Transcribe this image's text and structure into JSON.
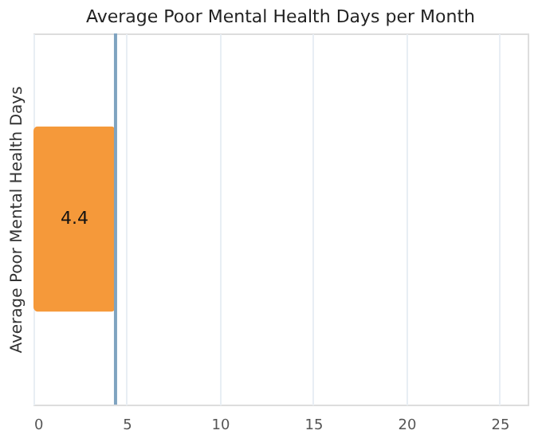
{
  "chart_data": {
    "type": "bar",
    "orientation": "horizontal",
    "title": "Average Poor Mental Health Days per Month",
    "ylabel": "Average Poor Mental Health Days",
    "categories": [
      null
    ],
    "values": [
      4.4
    ],
    "color": "#f5993a",
    "data_labels": true,
    "xlim": [
      0,
      26.5
    ],
    "xticks": [
      0,
      5,
      10,
      15,
      20,
      25
    ],
    "grid": "x",
    "ref_lines": [
      {
        "axis": "x",
        "value": 4.4,
        "color": "#7fa3c0"
      }
    ]
  }
}
